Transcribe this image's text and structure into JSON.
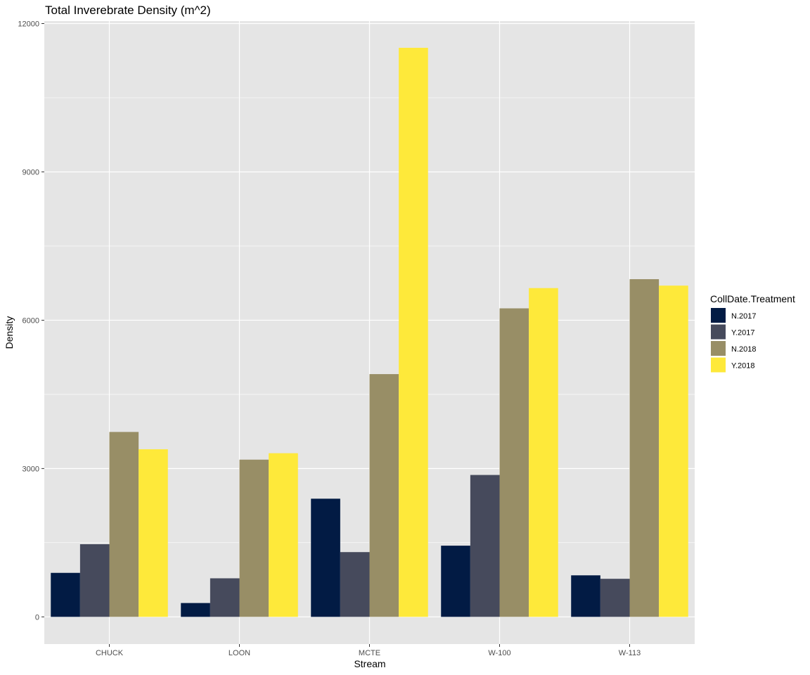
{
  "chart_data": {
    "type": "bar",
    "title": "Total Inverebrate Density (m^2)",
    "xlabel": "Stream",
    "ylabel": "Density",
    "categories": [
      "CHUCK",
      "LOON",
      "MCTE",
      "W-100",
      "W-113"
    ],
    "series": [
      {
        "name": "N.2017",
        "color": "#021B44",
        "values": [
          890,
          280,
          2390,
          1440,
          840
        ]
      },
      {
        "name": "Y.2017",
        "color": "#464A5C",
        "values": [
          1470,
          780,
          1310,
          2870,
          770
        ]
      },
      {
        "name": "N.2018",
        "color": "#988E66",
        "values": [
          3740,
          3180,
          4910,
          6240,
          6830
        ]
      },
      {
        "name": "Y.2018",
        "color": "#FEE93A",
        "values": [
          3390,
          3310,
          11510,
          6650,
          6700
        ]
      }
    ],
    "ylim": [
      -550,
      12050
    ],
    "yticks": [
      0,
      3000,
      6000,
      9000,
      12000
    ],
    "legend": {
      "title": "CollDate.Treatment",
      "position": "right"
    },
    "grid": true,
    "panel_background": "#E5E5E5",
    "grid_color": "#FFFFFF"
  }
}
